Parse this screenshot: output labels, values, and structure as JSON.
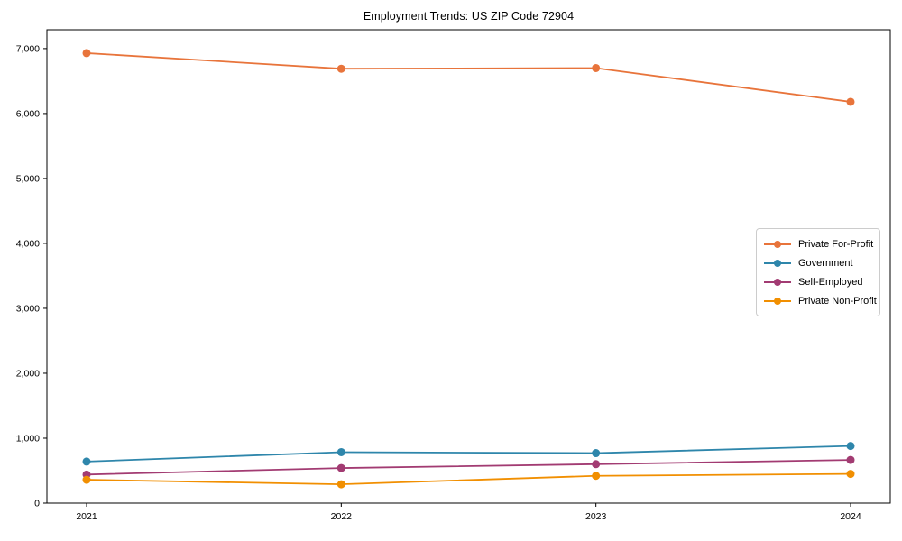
{
  "chart_data": {
    "type": "line",
    "title": "Employment Trends: US ZIP Code 72904",
    "xlabel": "",
    "ylabel": "",
    "x": [
      "2021",
      "2022",
      "2023",
      "2024"
    ],
    "series": [
      {
        "name": "Private For-Profit",
        "color": "#E8743B",
        "values": [
          6930,
          6690,
          6700,
          6180
        ]
      },
      {
        "name": "Government",
        "color": "#2E86AB",
        "values": [
          640,
          785,
          770,
          880
        ]
      },
      {
        "name": "Self-Employed",
        "color": "#A23B72",
        "values": [
          440,
          540,
          600,
          665
        ]
      },
      {
        "name": "Private Non-Profit",
        "color": "#F18F01",
        "values": [
          360,
          290,
          420,
          450
        ]
      }
    ],
    "ylim": [
      0,
      7290
    ],
    "yticks": [
      0,
      1000,
      2000,
      3000,
      4000,
      5000,
      6000,
      7000
    ],
    "grid": false,
    "legend_position": "center right",
    "marker": "circle",
    "axis_color": "#000000"
  }
}
